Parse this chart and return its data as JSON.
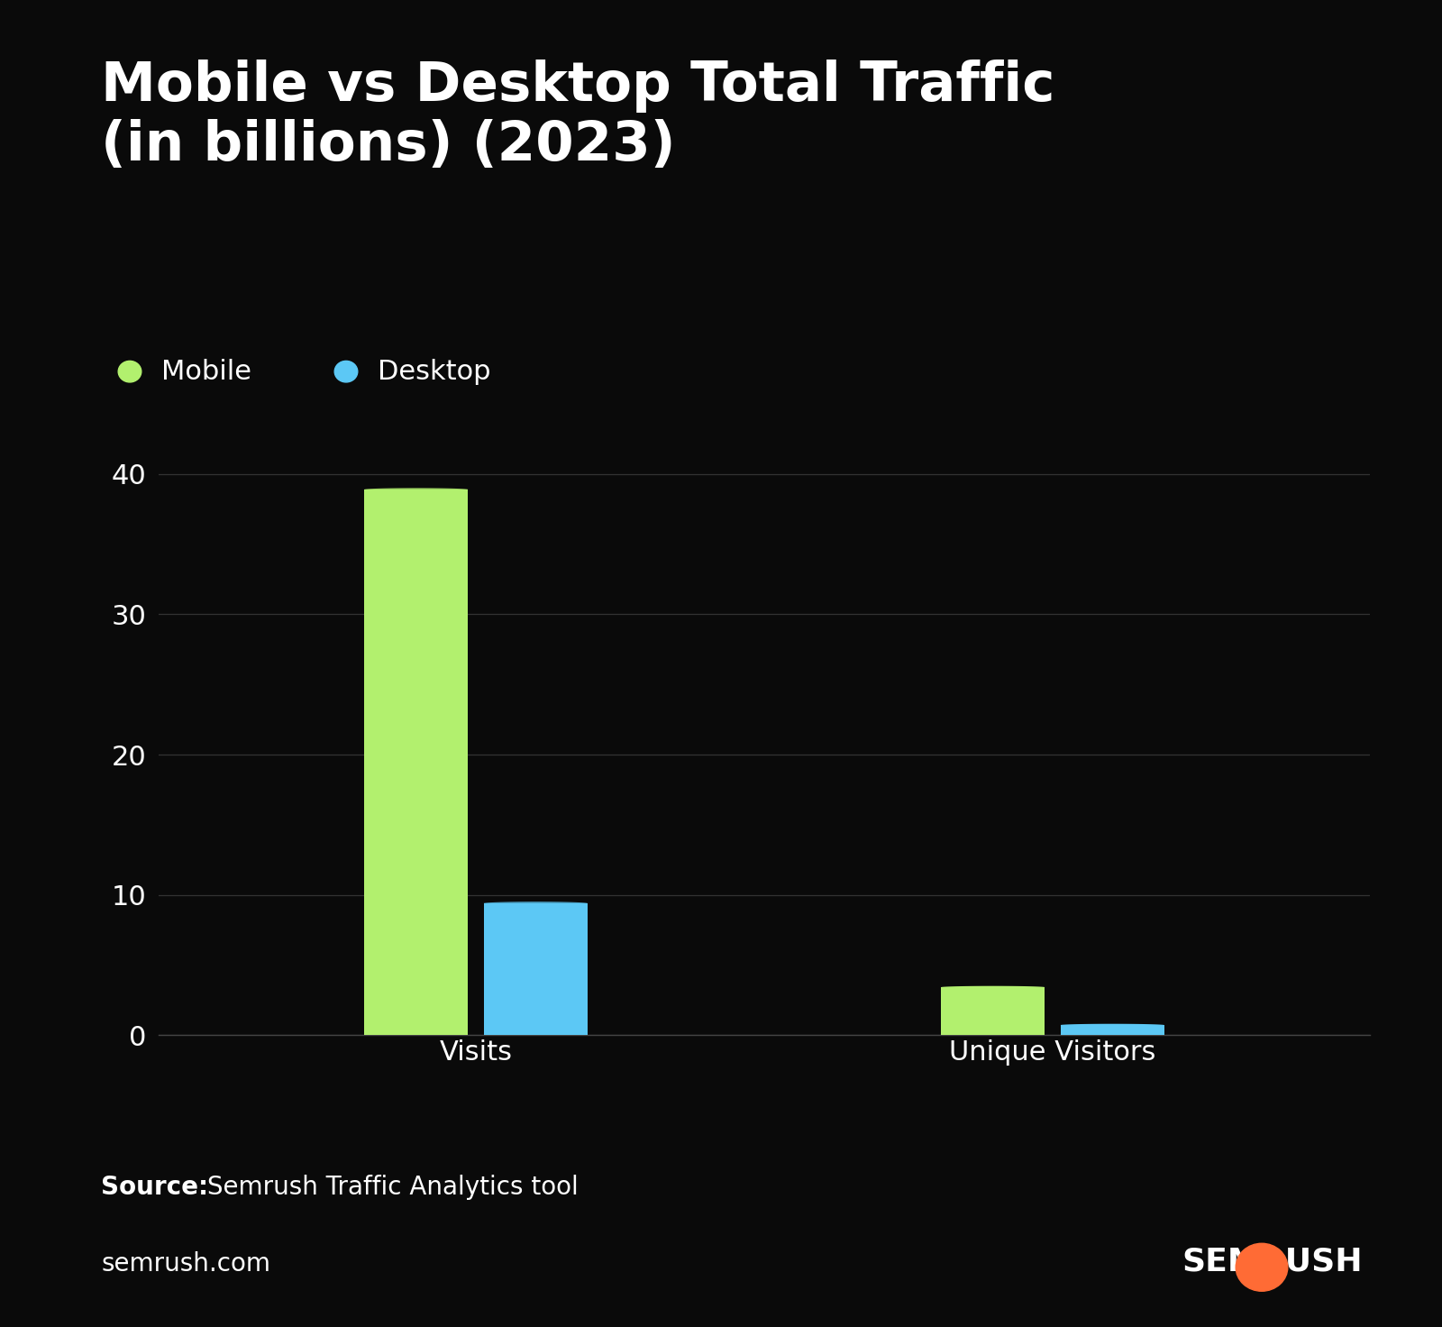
{
  "title": "Mobile vs Desktop Total Traffic\n(in billions) (2023)",
  "background_color": "#0a0a0a",
  "text_color": "#ffffff",
  "mobile_color": "#b2f06e",
  "desktop_color": "#5cc8f5",
  "categories": [
    "Visits",
    "Unique Visitors"
  ],
  "mobile_values": [
    39.0,
    3.5
  ],
  "desktop_values": [
    9.5,
    0.8
  ],
  "ylim": [
    0,
    44
  ],
  "yticks": [
    0,
    10,
    20,
    30,
    40
  ],
  "legend_labels": [
    "Mobile",
    "Desktop"
  ],
  "source_bold": "Source:",
  "source_text": " Semrush Traffic Analytics tool",
  "footer_left": "semrush.com",
  "title_fontsize": 44,
  "label_fontsize": 22,
  "tick_fontsize": 22,
  "legend_fontsize": 22,
  "source_fontsize": 20,
  "footer_fontsize": 20,
  "bar_width": 0.18,
  "group_centers": [
    0.55,
    1.55
  ]
}
